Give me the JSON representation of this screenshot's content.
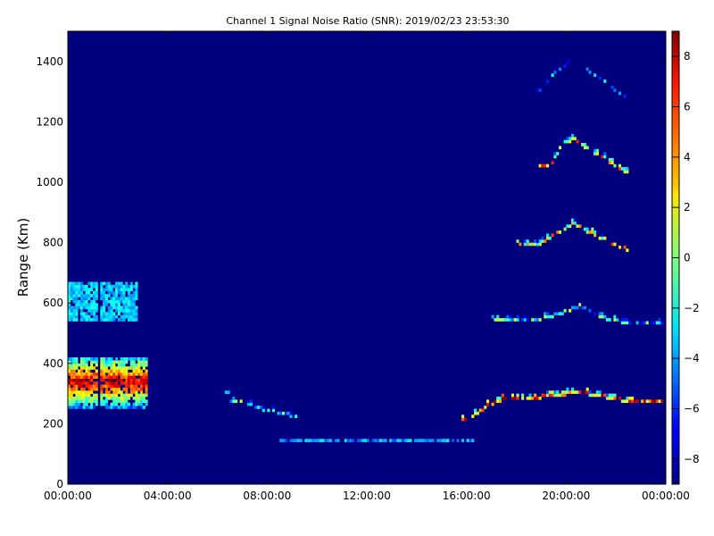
{
  "chart_data": {
    "type": "heatmap",
    "title": "Channel 1 Signal Noise Ratio (SNR): 2019/02/23 23:53:30",
    "xlabel": "",
    "ylabel": "Range (Km)",
    "x_range_hours": [
      0,
      24
    ],
    "x_ticks": [
      "00:00:00",
      "04:00:00",
      "08:00:00",
      "12:00:00",
      "16:00:00",
      "20:00:00",
      "00:00:00"
    ],
    "y_range": [
      0,
      1500
    ],
    "y_ticks": [
      "0",
      "200",
      "400",
      "600",
      "800",
      "1000",
      "1200",
      "1400"
    ],
    "colorbar": {
      "colormap": "jet",
      "range": [
        -9,
        9
      ],
      "ticks": [
        "8",
        "6",
        "4",
        "2",
        "0",
        "−2",
        "−4",
        "−6",
        "−8"
      ]
    },
    "background_value": -8.5,
    "features": [
      {
        "label": "ground-scatter-night",
        "t": [
          0,
          3.2
        ],
        "r": [
          250,
          420
        ],
        "peak": 8
      },
      {
        "label": "upper-echo-night",
        "t": [
          0,
          2.8
        ],
        "r": [
          540,
          670
        ],
        "peak": -3
      },
      {
        "label": "dawn-trace",
        "points": [
          [
            6.3,
            370
          ],
          [
            6.4,
            300
          ],
          [
            6.6,
            275
          ],
          [
            7.0,
            270
          ],
          [
            7.5,
            262
          ],
          [
            8.0,
            245
          ],
          [
            8.6,
            235
          ],
          [
            9.2,
            225
          ]
        ],
        "peak": 2
      },
      {
        "label": "midday-low-band",
        "t": [
          8.5,
          16.3
        ],
        "r": [
          140,
          150
        ],
        "peak": -4
      },
      {
        "label": "evening-hop-1",
        "points": [
          [
            15.8,
            210
          ],
          [
            16.3,
            230
          ],
          [
            16.8,
            260
          ],
          [
            17.5,
            285
          ],
          [
            18.5,
            285
          ],
          [
            19.5,
            295
          ],
          [
            20.5,
            305
          ],
          [
            21.5,
            290
          ],
          [
            22.5,
            275
          ],
          [
            23.9,
            275
          ]
        ],
        "peak": 9
      },
      {
        "label": "evening-hop-2",
        "points": [
          [
            17.0,
            550
          ],
          [
            18.5,
            540
          ],
          [
            19.5,
            560
          ],
          [
            20.5,
            590
          ],
          [
            21.5,
            550
          ],
          [
            22.5,
            535
          ],
          [
            23.9,
            530
          ]
        ],
        "peak": 2
      },
      {
        "label": "evening-hop-3",
        "points": [
          [
            18.0,
            800
          ],
          [
            18.8,
            790
          ],
          [
            19.5,
            830
          ],
          [
            20.3,
            865
          ],
          [
            21.0,
            830
          ],
          [
            21.5,
            810
          ],
          [
            22.5,
            775
          ]
        ],
        "peak": 6
      },
      {
        "label": "evening-hop-4",
        "points": [
          [
            18.8,
            1060
          ],
          [
            19.3,
            1050
          ],
          [
            19.8,
            1130
          ],
          [
            20.3,
            1145
          ],
          [
            21.0,
            1100
          ],
          [
            21.5,
            1080
          ],
          [
            22.5,
            1030
          ]
        ],
        "peak": 7
      },
      {
        "label": "evening-hop-5",
        "points": [
          [
            18.8,
            1300
          ],
          [
            19.5,
            1360
          ],
          [
            20.2,
            1410
          ],
          [
            21.2,
            1350
          ],
          [
            22.5,
            1270
          ]
        ],
        "peak": -2
      }
    ]
  }
}
